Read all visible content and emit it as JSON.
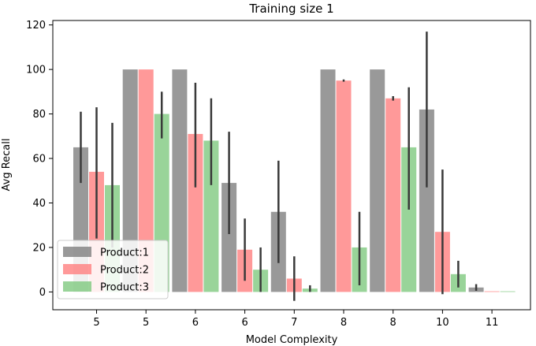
{
  "chart_data": {
    "type": "bar",
    "title": "Training size 1",
    "xlabel": "Model Complexity",
    "ylabel": "Avg Recall",
    "ylim": [
      -8,
      122
    ],
    "yticks": [
      0,
      20,
      40,
      60,
      80,
      100,
      120
    ],
    "categories": [
      "5",
      "5",
      "6",
      "6",
      "7",
      "8",
      "8",
      "10",
      "11"
    ],
    "legend_position": "lower-left",
    "grid": false,
    "series": [
      {
        "name": "Product:1",
        "color": "#808080",
        "values": [
          65,
          100,
          100,
          49,
          36,
          100,
          100,
          82,
          2
        ],
        "errors": [
          [
            49,
            81
          ],
          [
            100,
            100
          ],
          [
            100,
            100
          ],
          [
            26,
            72
          ],
          [
            13,
            59
          ],
          [
            100,
            100
          ],
          [
            100,
            100
          ],
          [
            47,
            117
          ],
          [
            0.5,
            3.5
          ]
        ]
      },
      {
        "name": "Product:2",
        "color": "#ff7f7f",
        "values": [
          54,
          100,
          71,
          19,
          6,
          95,
          87,
          27,
          0.3
        ],
        "errors": [
          [
            24,
            83
          ],
          [
            100,
            100
          ],
          [
            47,
            94
          ],
          [
            5,
            33
          ],
          [
            -4,
            16
          ],
          [
            94.5,
            95.5
          ],
          [
            86,
            88
          ],
          [
            -1,
            55
          ],
          [
            0.3,
            0.3
          ]
        ]
      },
      {
        "name": "Product:3",
        "color": "#7fc97f",
        "values": [
          48,
          80,
          68,
          10,
          1.5,
          20,
          65,
          8,
          0.3
        ],
        "errors": [
          [
            20,
            76
          ],
          [
            69,
            90
          ],
          [
            48,
            87
          ],
          [
            0,
            20
          ],
          [
            0,
            3
          ],
          [
            3,
            36
          ],
          [
            37,
            92
          ],
          [
            2,
            14
          ],
          [
            0.3,
            0.3
          ]
        ]
      }
    ]
  }
}
